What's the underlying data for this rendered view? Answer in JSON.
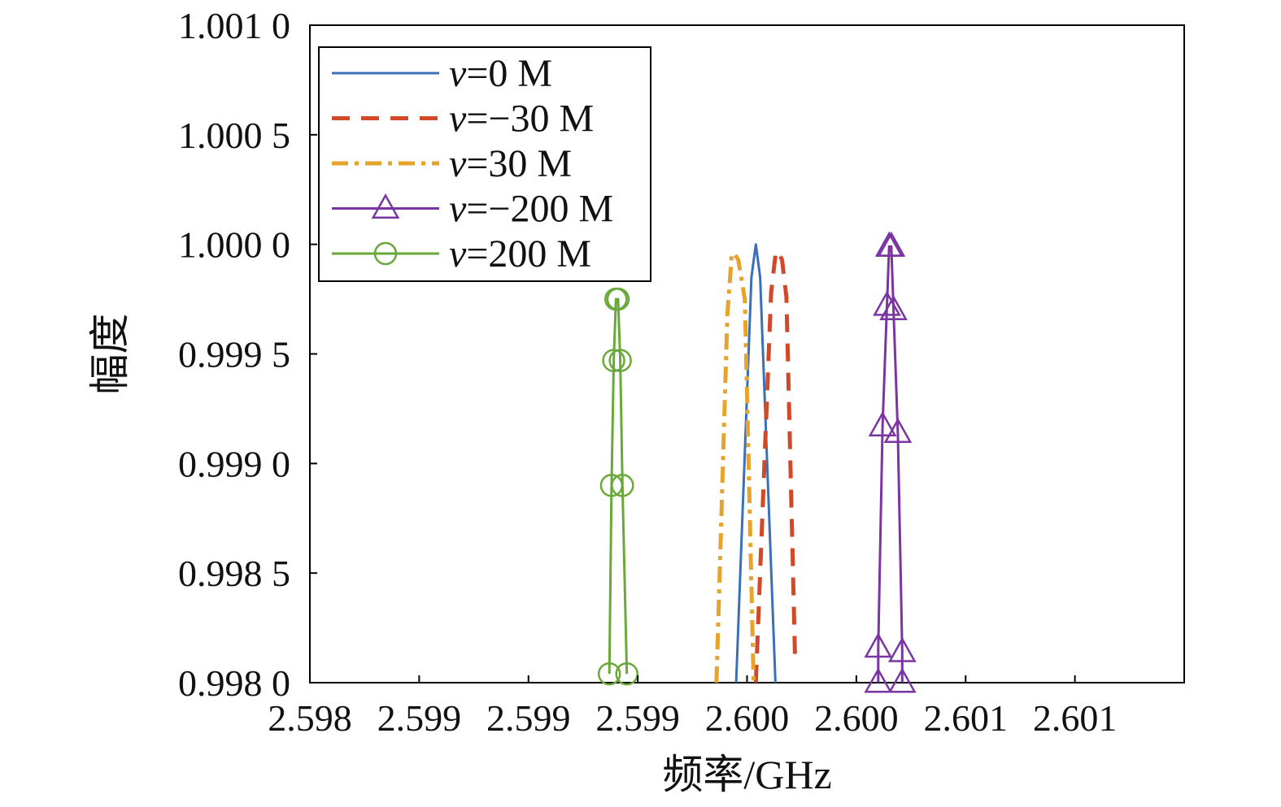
{
  "chart_data": {
    "type": "line",
    "title": "",
    "xlabel": "频率/GHz",
    "ylabel": "幅度",
    "xlim": [
      2.598,
      2.602
    ],
    "ylim": [
      0.998,
      1.001
    ],
    "x_tick_values": [
      2.598,
      2.5985,
      2.599,
      2.5995,
      2.6,
      2.6005,
      2.601,
      2.6015,
      2.602
    ],
    "x_tick_labels": [
      "2.598",
      "2.599",
      "2.599",
      "2.599",
      "2.600",
      "2.600",
      "2.601",
      "2.601",
      ""
    ],
    "y_ticks": [
      0.998,
      0.9985,
      0.999,
      0.9995,
      1.0,
      1.0005,
      1.001
    ],
    "y_tick_labels": [
      "0.998 0",
      "0.998 5",
      "0.999 0",
      "0.999 5",
      "1.000 0",
      "1.000 5",
      "1.001 0"
    ],
    "grid": false,
    "legend_position": "top-left",
    "series": [
      {
        "name": "v=0 M",
        "legend_var": "v",
        "legend_rest": "=0 M",
        "color": "#3a70b8",
        "style": "solid",
        "marker": "none",
        "points": [
          [
            2.59995,
            0.998
          ],
          [
            2.60002,
            0.99985
          ],
          [
            2.60004,
            1.0
          ],
          [
            2.60006,
            0.99985
          ],
          [
            2.60013,
            0.998
          ]
        ]
      },
      {
        "name": "v=−30 M",
        "legend_var": "v",
        "legend_rest": "=−30 M",
        "color": "#d2492a",
        "style": "dashed",
        "marker": "none",
        "points": [
          [
            2.60004,
            0.998
          ],
          [
            2.60011,
            0.99978
          ],
          [
            2.60013,
            0.99995
          ],
          [
            2.60014,
            0.99997
          ],
          [
            2.60016,
            0.99993
          ],
          [
            2.60018,
            0.99976
          ],
          [
            2.60022,
            0.9981
          ]
        ]
      },
      {
        "name": "v=30 M",
        "legend_var": "v",
        "legend_rest": "=30 M",
        "color": "#e6a42c",
        "style": "dashdot",
        "marker": "none",
        "points": [
          [
            2.59986,
            0.998
          ],
          [
            2.59991,
            0.99968
          ],
          [
            2.59993,
            0.99995
          ],
          [
            2.59994,
            0.99996
          ],
          [
            2.59996,
            0.99993
          ],
          [
            2.59999,
            0.99975
          ],
          [
            2.60003,
            0.998
          ]
        ]
      },
      {
        "name": "v=−200 M",
        "legend_var": "v",
        "legend_rest": "=−200 M",
        "color": "#7a35a2",
        "style": "solid",
        "marker": "triangle",
        "points": [
          [
            2.6006,
            0.998
          ],
          [
            2.6006,
            0.99816
          ],
          [
            2.60062,
            0.99917
          ],
          [
            2.60064,
            0.99972
          ],
          [
            2.60065,
            0.99999
          ],
          [
            2.60066,
            0.99999
          ],
          [
            2.60067,
            0.9997
          ],
          [
            2.60069,
            0.99914
          ],
          [
            2.60071,
            0.99814
          ],
          [
            2.60071,
            0.998
          ]
        ]
      },
      {
        "name": "v=200 M",
        "legend_var": "v",
        "legend_rest": "=200 M",
        "color": "#6aa83a",
        "style": "solid",
        "marker": "circle",
        "points": [
          [
            2.59937,
            0.99804
          ],
          [
            2.59938,
            0.9989
          ],
          [
            2.59939,
            0.99947
          ],
          [
            2.5994,
            0.99975
          ],
          [
            2.59941,
            0.99975
          ],
          [
            2.59942,
            0.99947
          ],
          [
            2.59943,
            0.9989
          ],
          [
            2.59945,
            0.99804
          ]
        ]
      }
    ]
  }
}
